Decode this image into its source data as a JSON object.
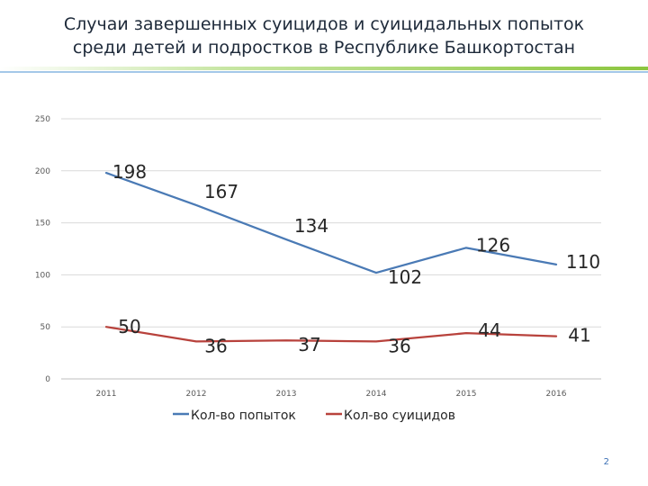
{
  "title": {
    "line1": "Случаи завершенных суицидов и суицидальных попыток",
    "line2": "среди детей и подростков в Республике Башкортостан"
  },
  "page_number": "2",
  "colors": {
    "series_attempts": "#4a7ab5",
    "series_suicides": "#b8423c",
    "gridline": "#d9d9d9",
    "deco_green": "#8cc63f",
    "deco_blue": "#5a9bd5"
  },
  "chart_data": {
    "type": "line",
    "categories": [
      "2011",
      "2012",
      "2013",
      "2014",
      "2015",
      "2016"
    ],
    "x_tick_labels": [
      "2011",
      "2012",
      "2013",
      "2014",
      "2015",
      "2016"
    ],
    "y_ticks": [
      "0",
      "50",
      "100",
      "150",
      "200",
      "250"
    ],
    "ylim": [
      0,
      250
    ],
    "grid": true,
    "legend_position": "bottom",
    "series": [
      {
        "name": "Кол-во попыток",
        "values": [
          198,
          167,
          134,
          102,
          126,
          110
        ],
        "labels": [
          "198",
          "167",
          "134",
          "102",
          "126",
          "110"
        ],
        "color": "#4a7ab5"
      },
      {
        "name": "Кол-во суицидов",
        "values": [
          50,
          36,
          37,
          36,
          44,
          41
        ],
        "labels": [
          "50",
          "36",
          "37",
          "36",
          "44",
          "41"
        ],
        "color": "#b8423c"
      }
    ]
  }
}
